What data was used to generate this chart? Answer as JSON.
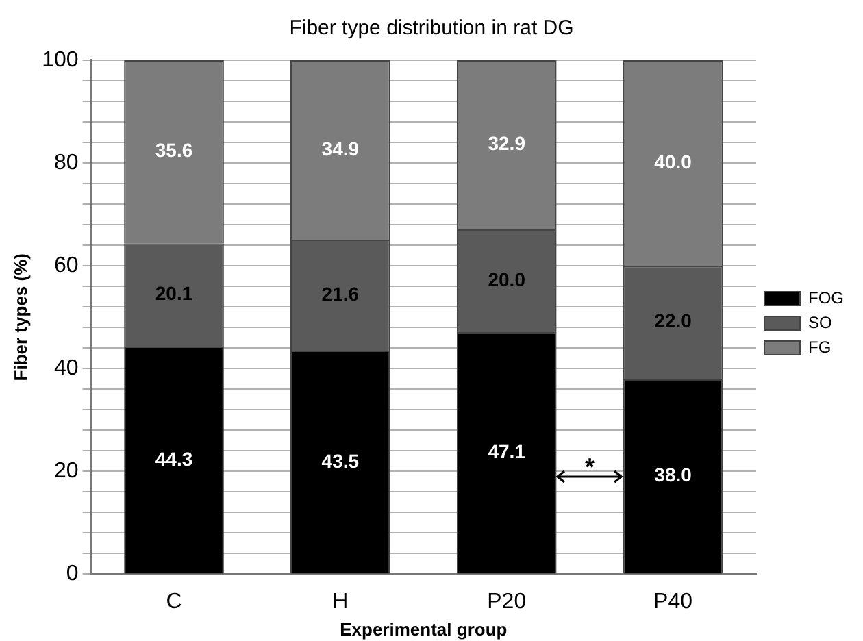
{
  "chart_data": {
    "type": "bar",
    "title": "Fiber type distribution in rat DG",
    "xlabel": "Experimental group",
    "ylabel": "Fiber types (%)",
    "categories": [
      "C",
      "H",
      "P20",
      "P40"
    ],
    "stacked": true,
    "grid": "y",
    "legend": "right",
    "series": [
      {
        "name": "FOG",
        "color": "#000000",
        "values": [
          44.3,
          43.5,
          47.1,
          38.0
        ],
        "value_labels": [
          "44.3",
          "43.5",
          "47.1",
          "38.0"
        ]
      },
      {
        "name": "SO",
        "color": "#5a5a5a",
        "values": [
          20.1,
          21.6,
          20.0,
          22.0
        ],
        "value_labels": [
          "20.1",
          "21.6",
          "20.0",
          "22.0"
        ]
      },
      {
        "name": "FG",
        "color": "#7c7c7c",
        "values": [
          35.6,
          34.9,
          32.9,
          40.0
        ],
        "value_labels": [
          "35.6",
          "34.9",
          "32.9",
          "40.0"
        ]
      }
    ],
    "ylim": [
      0,
      100
    ],
    "yticks": [
      0,
      {
        "value": 4,
        "label": null
      },
      {
        "value": 8,
        "label": null
      },
      {
        "value": 12,
        "label": null
      },
      {
        "value": 16,
        "label": null
      },
      20,
      {
        "value": 24,
        "label": null
      },
      {
        "value": 28,
        "label": null
      },
      {
        "value": 32,
        "label": null
      },
      {
        "value": 36,
        "label": null
      },
      40,
      {
        "value": 44,
        "label": null
      },
      {
        "value": 48,
        "label": null
      },
      {
        "value": 52,
        "label": null
      },
      {
        "value": 56,
        "label": null
      },
      60,
      {
        "value": 64,
        "label": null
      },
      {
        "value": 68,
        "label": null
      },
      {
        "value": 72,
        "label": null
      },
      {
        "value": 76,
        "label": null
      },
      80,
      {
        "value": 84,
        "label": null
      },
      {
        "value": 88,
        "label": null
      },
      {
        "value": 92,
        "label": null
      },
      {
        "value": 96,
        "label": null
      },
      100
    ],
    "annotations": [
      "*"
    ]
  }
}
